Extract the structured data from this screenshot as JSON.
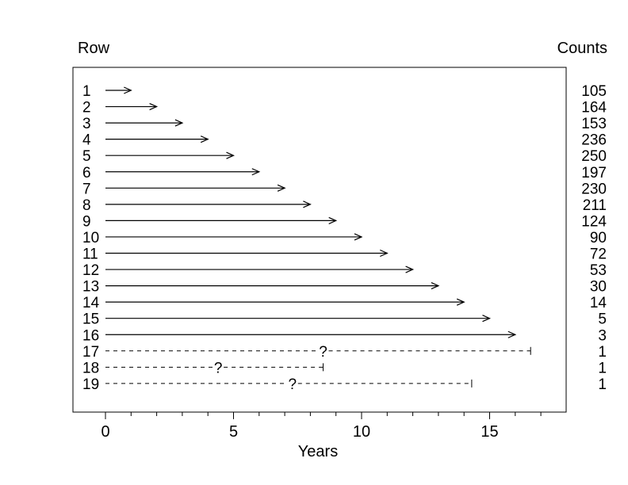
{
  "chart_data": {
    "type": "timeline",
    "row_header": "Row",
    "counts_header": "Counts",
    "xlabel": "Years",
    "xlim": [
      -1.3,
      18.1
    ],
    "xticks": [
      0,
      5,
      10,
      15
    ],
    "minor_ticks": [
      1,
      2,
      3,
      4,
      6,
      7,
      8,
      9,
      11,
      12,
      13,
      14,
      16,
      17
    ],
    "grid": false,
    "rows": [
      {
        "row": "1",
        "end": 1,
        "style": "solid",
        "count": "105"
      },
      {
        "row": "2",
        "end": 2,
        "style": "solid",
        "count": "164"
      },
      {
        "row": "3",
        "end": 3,
        "style": "solid",
        "count": "153"
      },
      {
        "row": "4",
        "end": 4,
        "style": "solid",
        "count": "236"
      },
      {
        "row": "5",
        "end": 5,
        "style": "solid",
        "count": "250"
      },
      {
        "row": "6",
        "end": 6,
        "style": "solid",
        "count": "197"
      },
      {
        "row": "7",
        "end": 7,
        "style": "solid",
        "count": "230"
      },
      {
        "row": "8",
        "end": 8,
        "style": "solid",
        "count": "211"
      },
      {
        "row": "9",
        "end": 9,
        "style": "solid",
        "count": "124"
      },
      {
        "row": "10",
        "end": 10,
        "style": "solid",
        "count": "90"
      },
      {
        "row": "11",
        "end": 11,
        "style": "solid",
        "count": "72"
      },
      {
        "row": "12",
        "end": 12,
        "style": "solid",
        "count": "53"
      },
      {
        "row": "13",
        "end": 13,
        "style": "solid",
        "count": "30"
      },
      {
        "row": "14",
        "end": 14,
        "style": "solid",
        "count": "14"
      },
      {
        "row": "15",
        "end": 15,
        "style": "solid",
        "count": "5"
      },
      {
        "row": "16",
        "end": 16,
        "style": "solid",
        "count": "3"
      },
      {
        "row": "17",
        "end": 16.6,
        "style": "dashed",
        "marker": "?",
        "marker_at": 8.5,
        "count": "1"
      },
      {
        "row": "18",
        "end": 8.5,
        "style": "dashed",
        "marker": "?",
        "marker_at": 4.4,
        "count": "1"
      },
      {
        "row": "19",
        "end": 14.3,
        "style": "dashed",
        "marker": "?",
        "marker_at": 7.3,
        "count": "1"
      }
    ]
  }
}
